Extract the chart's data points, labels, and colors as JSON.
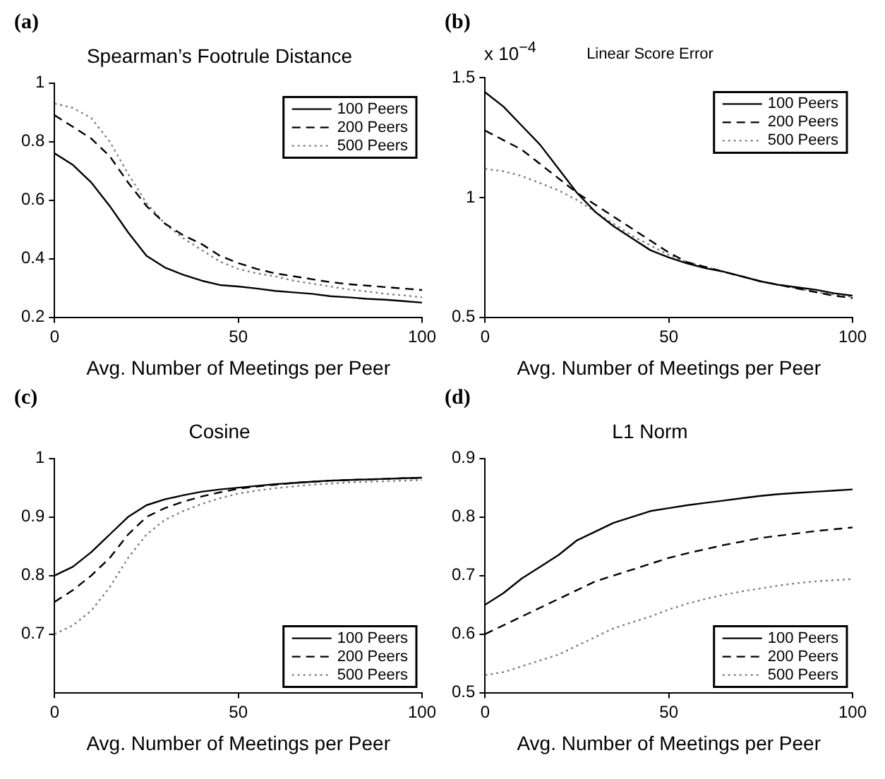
{
  "chart_data": [
    {
      "type": "line",
      "title": "Spearman’s Footrule Distance",
      "xlabel": "Avg. Number of Meetings per Peer",
      "annotations": [
        "(a)"
      ],
      "x": [
        0,
        5,
        10,
        15,
        20,
        25,
        30,
        35,
        40,
        45,
        50,
        55,
        60,
        65,
        70,
        75,
        80,
        85,
        90,
        95,
        100
      ],
      "xlim": [
        0,
        100
      ],
      "xticks": [
        0,
        50,
        100
      ],
      "ylim": [
        0.2,
        1
      ],
      "yticks": [
        0.2,
        0.4,
        0.6,
        0.8,
        1
      ],
      "grid": false,
      "legend": "top right",
      "marker": "none",
      "series": [
        {
          "name": "100 Peers",
          "color": "#000000",
          "line_style": "solid",
          "values": [
            0.76,
            0.72,
            0.66,
            0.58,
            0.49,
            0.41,
            0.37,
            0.345,
            0.325,
            0.31,
            0.305,
            0.298,
            0.29,
            0.285,
            0.28,
            0.272,
            0.268,
            0.263,
            0.26,
            0.255,
            0.25
          ]
        },
        {
          "name": "200 Peers",
          "color": "#000000",
          "line_style": "dashed",
          "values": [
            0.89,
            0.85,
            0.81,
            0.75,
            0.66,
            0.58,
            0.52,
            0.48,
            0.45,
            0.41,
            0.385,
            0.365,
            0.35,
            0.34,
            0.33,
            0.32,
            0.313,
            0.308,
            0.303,
            0.298,
            0.293
          ]
        },
        {
          "name": "500 Peers",
          "color": "#808080",
          "line_style": "dotted",
          "values": [
            0.93,
            0.915,
            0.88,
            0.8,
            0.69,
            0.59,
            0.52,
            0.47,
            0.43,
            0.39,
            0.365,
            0.35,
            0.34,
            0.325,
            0.315,
            0.305,
            0.295,
            0.288,
            0.28,
            0.275,
            0.268
          ]
        }
      ]
    },
    {
      "type": "line",
      "title": "Linear Score Error",
      "xlabel": "Avg. Number of Meetings per Peer",
      "annotations": [
        "(b)",
        "x 10$^{−4}$"
      ],
      "x": [
        0,
        5,
        10,
        15,
        20,
        25,
        30,
        35,
        40,
        45,
        50,
        55,
        60,
        65,
        70,
        75,
        80,
        85,
        90,
        95,
        100
      ],
      "xlim": [
        0,
        100
      ],
      "xticks": [
        0,
        50,
        100
      ],
      "ylim": [
        0.5,
        1.5
      ],
      "yticks": [
        0.5,
        1,
        1.5
      ],
      "grid": false,
      "legend": "top right",
      "marker": "none",
      "series": [
        {
          "name": "100 Peers",
          "color": "#000000",
          "line_style": "solid",
          "values": [
            1.44,
            1.38,
            1.3,
            1.22,
            1.12,
            1.02,
            0.94,
            0.88,
            0.83,
            0.78,
            0.75,
            0.725,
            0.705,
            0.69,
            0.67,
            0.65,
            0.635,
            0.625,
            0.615,
            0.6,
            0.59
          ]
        },
        {
          "name": "200 Peers",
          "color": "#000000",
          "line_style": "dashed",
          "values": [
            1.28,
            1.24,
            1.2,
            1.14,
            1.08,
            1.02,
            0.97,
            0.92,
            0.87,
            0.82,
            0.77,
            0.73,
            0.71,
            0.69,
            0.67,
            0.65,
            0.635,
            0.62,
            0.605,
            0.59,
            0.58
          ]
        },
        {
          "name": "500 Peers",
          "color": "#808080",
          "line_style": "dotted",
          "values": [
            1.12,
            1.11,
            1.09,
            1.06,
            1.03,
            0.99,
            0.94,
            0.89,
            0.84,
            0.8,
            0.76,
            0.73,
            0.71,
            0.69,
            0.67,
            0.65,
            0.635,
            0.62,
            0.605,
            0.595,
            0.585
          ]
        }
      ]
    },
    {
      "type": "line",
      "title": "Cosine",
      "xlabel": "Avg. Number of Meetings per Peer",
      "annotations": [
        "(c)"
      ],
      "x": [
        0,
        5,
        10,
        15,
        20,
        25,
        30,
        35,
        40,
        45,
        50,
        55,
        60,
        65,
        70,
        75,
        80,
        85,
        90,
        95,
        100
      ],
      "xlim": [
        0,
        100
      ],
      "xticks": [
        0,
        50,
        100
      ],
      "ylim": [
        0.6,
        1
      ],
      "yticks": [
        0.7,
        0.8,
        0.9,
        1
      ],
      "grid": false,
      "legend": "bottom right",
      "marker": "none",
      "series": [
        {
          "name": "100 Peers",
          "color": "#000000",
          "line_style": "solid",
          "values": [
            0.8,
            0.815,
            0.84,
            0.87,
            0.9,
            0.92,
            0.93,
            0.937,
            0.943,
            0.947,
            0.95,
            0.953,
            0.956,
            0.958,
            0.96,
            0.962,
            0.963,
            0.964,
            0.965,
            0.966,
            0.967
          ]
        },
        {
          "name": "200 Peers",
          "color": "#000000",
          "line_style": "dashed",
          "values": [
            0.755,
            0.775,
            0.8,
            0.83,
            0.87,
            0.9,
            0.915,
            0.926,
            0.935,
            0.942,
            0.948,
            0.952,
            0.955,
            0.958,
            0.96,
            0.962,
            0.963,
            0.964,
            0.965,
            0.966,
            0.967
          ]
        },
        {
          "name": "500 Peers",
          "color": "#808080",
          "line_style": "dotted",
          "values": [
            0.7,
            0.715,
            0.74,
            0.78,
            0.83,
            0.87,
            0.895,
            0.91,
            0.922,
            0.932,
            0.94,
            0.945,
            0.949,
            0.952,
            0.955,
            0.957,
            0.959,
            0.96,
            0.961,
            0.962,
            0.963
          ]
        }
      ]
    },
    {
      "type": "line",
      "title": "L1 Norm",
      "xlabel": "Avg. Number of Meetings per Peer",
      "annotations": [
        "(d)"
      ],
      "x": [
        0,
        5,
        10,
        15,
        20,
        25,
        30,
        35,
        40,
        45,
        50,
        55,
        60,
        65,
        70,
        75,
        80,
        85,
        90,
        95,
        100
      ],
      "xlim": [
        0,
        100
      ],
      "xticks": [
        0,
        50,
        100
      ],
      "ylim": [
        0.5,
        0.9
      ],
      "yticks": [
        0.5,
        0.6,
        0.7,
        0.8,
        0.9
      ],
      "grid": false,
      "legend": "bottom right",
      "marker": "none",
      "series": [
        {
          "name": "100 Peers",
          "color": "#000000",
          "line_style": "solid",
          "values": [
            0.65,
            0.67,
            0.695,
            0.715,
            0.735,
            0.76,
            0.775,
            0.79,
            0.8,
            0.81,
            0.815,
            0.82,
            0.824,
            0.828,
            0.832,
            0.836,
            0.839,
            0.841,
            0.843,
            0.845,
            0.847
          ]
        },
        {
          "name": "200 Peers",
          "color": "#000000",
          "line_style": "dashed",
          "values": [
            0.6,
            0.615,
            0.63,
            0.645,
            0.66,
            0.675,
            0.69,
            0.7,
            0.71,
            0.72,
            0.73,
            0.738,
            0.745,
            0.752,
            0.758,
            0.764,
            0.768,
            0.772,
            0.776,
            0.779,
            0.782
          ]
        },
        {
          "name": "500 Peers",
          "color": "#808080",
          "line_style": "dotted",
          "values": [
            0.53,
            0.535,
            0.545,
            0.555,
            0.565,
            0.58,
            0.595,
            0.61,
            0.62,
            0.63,
            0.642,
            0.652,
            0.66,
            0.667,
            0.673,
            0.678,
            0.683,
            0.687,
            0.69,
            0.692,
            0.694
          ]
        }
      ]
    }
  ]
}
